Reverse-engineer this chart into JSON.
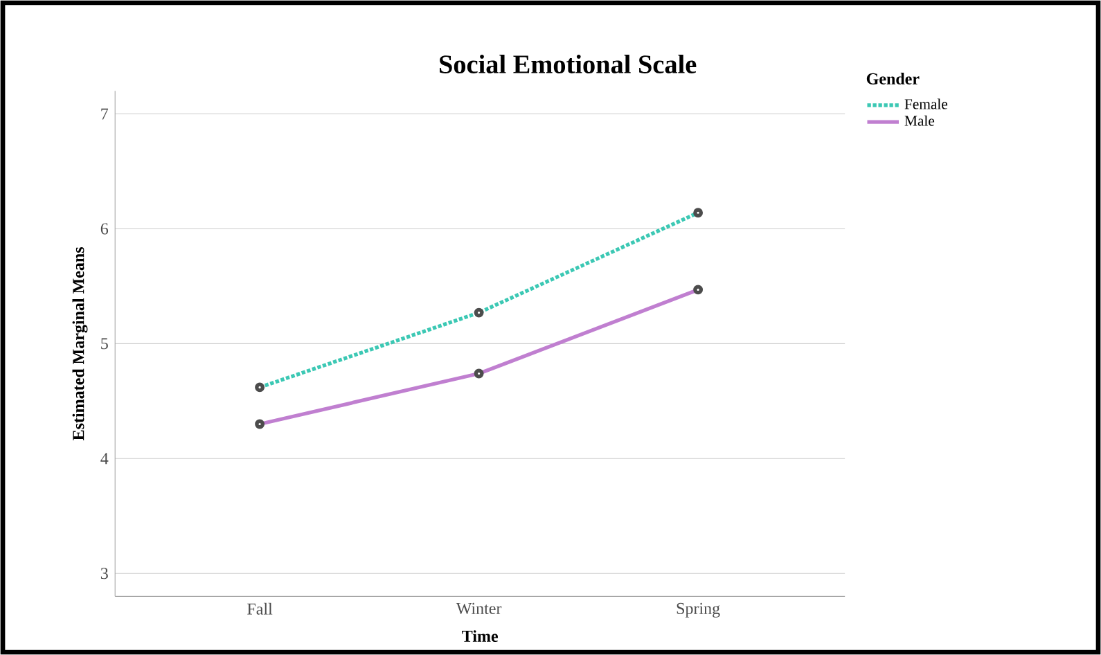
{
  "chart_data": {
    "type": "line",
    "title": "Social Emotional Scale",
    "xlabel": "Time",
    "ylabel": "Estimated Marginal Means",
    "legend_title": "Gender",
    "categories": [
      "Fall",
      "Winter",
      "Spring"
    ],
    "series": [
      {
        "name": "Female",
        "color": "#3cc8b4",
        "values": [
          4.62,
          5.27,
          6.14
        ],
        "line_style": "dotted"
      },
      {
        "name": "Male",
        "color": "#c07fd0",
        "values": [
          4.3,
          4.74,
          5.47
        ],
        "line_style": "solid"
      }
    ],
    "ylim": [
      2.8,
      7.2
    ],
    "yticks": [
      3,
      4,
      5,
      6,
      7
    ],
    "grid": "y",
    "legend": "top right",
    "marker": "circle"
  }
}
